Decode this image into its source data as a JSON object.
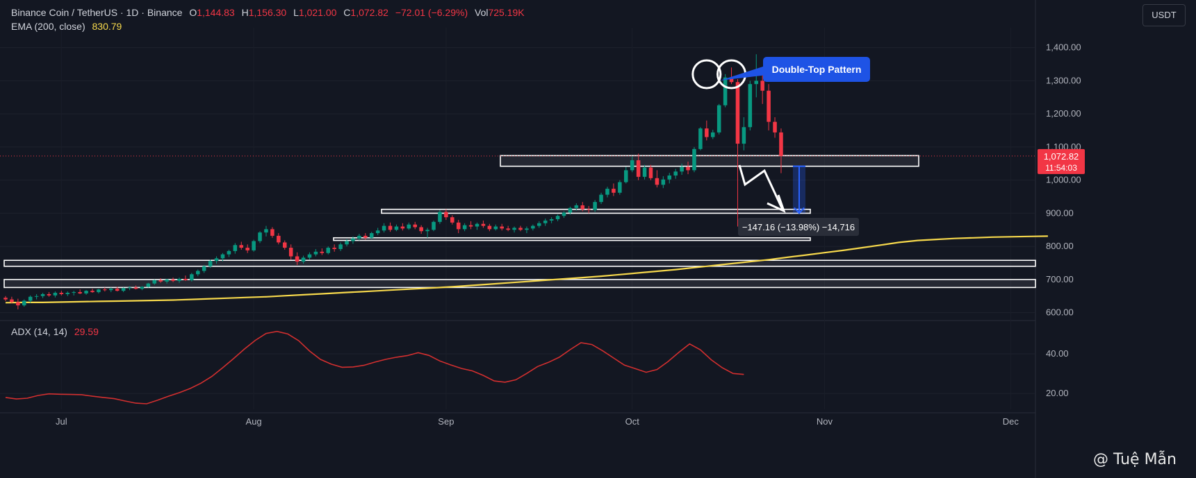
{
  "header": {
    "symbol": "Binance Coin / TetherUS · 1D · Binance",
    "o_label": "O",
    "o_value": "1,144.83",
    "h_label": "H",
    "h_value": "1,156.30",
    "l_label": "L",
    "l_value": "1,021.00",
    "c_label": "C",
    "c_value": "1,072.82",
    "change": "−72.01 (−6.29%)",
    "vol_label": "Vol",
    "vol_value": "725.19K"
  },
  "ema": {
    "label": "EMA (200, close)",
    "value": "830.79"
  },
  "adx": {
    "label": "ADX (14, 14)",
    "value": "29.59"
  },
  "currency_button": "USDT",
  "price_tag": {
    "price": "1,072.82",
    "countdown": "11:54:03"
  },
  "annotation": {
    "pattern_label": "Double-Top Pattern",
    "measure_label": "−147.16 (−13.98%) −14,716"
  },
  "watermark": "@ Tuệ Mẫn",
  "colors": {
    "background": "#131722",
    "up": "#089981",
    "down": "#f23645",
    "ema": "#f7d94c",
    "adx": "#d32f2f",
    "callout": "#1e53e5"
  },
  "chart_data": [
    {
      "type": "candlestick",
      "title": "Binance Coin / TetherUS · 1D · Binance",
      "x_ticks": [
        "Jul",
        "Aug",
        "Sep",
        "Oct",
        "Nov",
        "Dec"
      ],
      "y_ticks": [
        "600.00",
        "700.00",
        "800.00",
        "900.00",
        "1,000.00",
        "1,100.00",
        "1,200.00",
        "1,300.00",
        "1,400.00"
      ],
      "ylim": [
        570,
        1460
      ],
      "start_date": "2025-06-22",
      "x_end_date": "2025-12-05",
      "last_price": 1072.82,
      "ohlc": [
        [
          645,
          650,
          635,
          640
        ],
        [
          640,
          648,
          628,
          632
        ],
        [
          632,
          642,
          610,
          622
        ],
        [
          622,
          640,
          618,
          636
        ],
        [
          636,
          652,
          630,
          648
        ],
        [
          648,
          656,
          640,
          650
        ],
        [
          650,
          660,
          644,
          656
        ],
        [
          656,
          662,
          648,
          652
        ],
        [
          652,
          664,
          646,
          660
        ],
        [
          660,
          666,
          652,
          656
        ],
        [
          656,
          664,
          650,
          660
        ],
        [
          660,
          666,
          652,
          662
        ],
        [
          662,
          670,
          656,
          658
        ],
        [
          658,
          668,
          654,
          666
        ],
        [
          666,
          672,
          660,
          662
        ],
        [
          662,
          672,
          658,
          670
        ],
        [
          670,
          676,
          664,
          668
        ],
        [
          668,
          676,
          662,
          672
        ],
        [
          672,
          678,
          664,
          666
        ],
        [
          666,
          676,
          662,
          674
        ],
        [
          674,
          680,
          668,
          676
        ],
        [
          676,
          682,
          670,
          672
        ],
        [
          672,
          680,
          668,
          678
        ],
        [
          678,
          690,
          676,
          688
        ],
        [
          688,
          700,
          684,
          698
        ],
        [
          698,
          704,
          690,
          694
        ],
        [
          694,
          702,
          688,
          700
        ],
        [
          700,
          706,
          692,
          696
        ],
        [
          696,
          706,
          690,
          702
        ],
        [
          702,
          712,
          696,
          698
        ],
        [
          698,
          720,
          694,
          716
        ],
        [
          716,
          730,
          710,
          726
        ],
        [
          726,
          744,
          720,
          740
        ],
        [
          740,
          760,
          735,
          756
        ],
        [
          756,
          770,
          748,
          764
        ],
        [
          764,
          780,
          755,
          776
        ],
        [
          776,
          790,
          768,
          786
        ],
        [
          786,
          810,
          778,
          804
        ],
        [
          804,
          814,
          790,
          796
        ],
        [
          796,
          806,
          780,
          788
        ],
        [
          788,
          820,
          784,
          816
        ],
        [
          816,
          846,
          810,
          842
        ],
        [
          842,
          862,
          830,
          852
        ],
        [
          852,
          858,
          826,
          832
        ],
        [
          832,
          840,
          806,
          812
        ],
        [
          812,
          818,
          790,
          796
        ],
        [
          796,
          806,
          760,
          770
        ],
        [
          770,
          782,
          744,
          754
        ],
        [
          754,
          772,
          748,
          766
        ],
        [
          766,
          782,
          760,
          776
        ],
        [
          776,
          792,
          770,
          784
        ],
        [
          784,
          794,
          774,
          780
        ],
        [
          780,
          800,
          776,
          796
        ],
        [
          796,
          806,
          784,
          792
        ],
        [
          792,
          812,
          786,
          806
        ],
        [
          806,
          822,
          800,
          816
        ],
        [
          816,
          830,
          808,
          824
        ],
        [
          824,
          838,
          818,
          832
        ],
        [
          832,
          840,
          820,
          826
        ],
        [
          826,
          844,
          822,
          840
        ],
        [
          840,
          856,
          834,
          848
        ],
        [
          848,
          870,
          842,
          862
        ],
        [
          862,
          872,
          844,
          850
        ],
        [
          850,
          866,
          846,
          860
        ],
        [
          860,
          870,
          848,
          854
        ],
        [
          854,
          872,
          850,
          866
        ],
        [
          866,
          874,
          852,
          858
        ],
        [
          858,
          864,
          838,
          846
        ],
        [
          846,
          856,
          826,
          850
        ],
        [
          850,
          878,
          846,
          874
        ],
        [
          874,
          910,
          868,
          904
        ],
        [
          904,
          912,
          880,
          888
        ],
        [
          888,
          894,
          866,
          872
        ],
        [
          872,
          880,
          840,
          852
        ],
        [
          852,
          870,
          846,
          864
        ],
        [
          864,
          876,
          852,
          860
        ],
        [
          860,
          872,
          850,
          868
        ],
        [
          868,
          878,
          856,
          862
        ],
        [
          862,
          868,
          846,
          852
        ],
        [
          852,
          866,
          848,
          860
        ],
        [
          860,
          868,
          848,
          854
        ],
        [
          854,
          862,
          846,
          850
        ],
        [
          850,
          860,
          842,
          856
        ],
        [
          856,
          862,
          846,
          850
        ],
        [
          850,
          860,
          840,
          854
        ],
        [
          854,
          866,
          848,
          862
        ],
        [
          862,
          876,
          856,
          870
        ],
        [
          870,
          884,
          862,
          878
        ],
        [
          878,
          888,
          870,
          882
        ],
        [
          882,
          896,
          876,
          892
        ],
        [
          892,
          906,
          886,
          902
        ],
        [
          902,
          920,
          896,
          916
        ],
        [
          916,
          930,
          908,
          924
        ],
        [
          924,
          934,
          906,
          912
        ],
        [
          912,
          922,
          900,
          910
        ],
        [
          910,
          940,
          904,
          934
        ],
        [
          934,
          962,
          928,
          956
        ],
        [
          956,
          980,
          948,
          974
        ],
        [
          974,
          990,
          952,
          962
        ],
        [
          962,
          1000,
          956,
          994
        ],
        [
          994,
          1040,
          990,
          1030
        ],
        [
          1030,
          1072,
          1024,
          1060
        ],
        [
          1060,
          1080,
          1000,
          1010
        ],
        [
          1010,
          1046,
          1002,
          1038
        ],
        [
          1038,
          1046,
          1000,
          1006
        ],
        [
          1006,
          1030,
          978,
          986
        ],
        [
          986,
          1012,
          976,
          1002
        ],
        [
          1002,
          1022,
          990,
          1014
        ],
        [
          1014,
          1034,
          1004,
          1026
        ],
        [
          1026,
          1050,
          1016,
          1040
        ],
        [
          1040,
          1056,
          1018,
          1030
        ],
        [
          1030,
          1100,
          1024,
          1094
        ],
        [
          1094,
          1160,
          1090,
          1156
        ],
        [
          1156,
          1180,
          1120,
          1130
        ],
        [
          1130,
          1152,
          1124,
          1144
        ],
        [
          1144,
          1230,
          1138,
          1226
        ],
        [
          1226,
          1320,
          1220,
          1310
        ],
        [
          1310,
          1340,
          1290,
          1296
        ],
        [
          1296,
          1305,
          860,
          1110
        ],
        [
          1110,
          1190,
          1090,
          1160
        ],
        [
          1160,
          1300,
          1150,
          1290
        ],
        [
          1290,
          1380,
          1250,
          1300
        ],
        [
          1300,
          1318,
          1230,
          1270
        ],
        [
          1270,
          1290,
          1150,
          1176
        ],
        [
          1176,
          1190,
          1128,
          1144
        ],
        [
          1144,
          1156,
          1021,
          1073
        ]
      ],
      "series": [
        {
          "name": "EMA (200, close)",
          "values": [
            630,
            631,
            631,
            632,
            633,
            634,
            635,
            636,
            637,
            638,
            640,
            642,
            644,
            646,
            648,
            651,
            654,
            657,
            660,
            663,
            666,
            669,
            672,
            675,
            678,
            682,
            686,
            690,
            694,
            698,
            702,
            706,
            710,
            715,
            720,
            725,
            730,
            736,
            742,
            748,
            754,
            760,
            767,
            774,
            781,
            788,
            796,
            804,
            812,
            818,
            821,
            824,
            826,
            828,
            829,
            830,
            831
          ],
          "x_step": 3
        }
      ],
      "annotations": {
        "zones": [
          [
            1042,
            1074
          ],
          [
            900,
            912
          ],
          [
            818,
            826
          ],
          [
            740,
            758
          ],
          [
            676,
            700
          ]
        ],
        "measure": {
          "from": 1042,
          "to": 900
        }
      }
    },
    {
      "type": "line",
      "title": "ADX (14, 14)",
      "y_ticks": [
        "20.00",
        "40.00"
      ],
      "ylim": [
        12,
        54
      ],
      "series": [
        {
          "name": "ADX (14, 14)",
          "values": [
            18.0,
            17.2,
            17.6,
            19.0,
            19.8,
            19.6,
            19.5,
            19.4,
            18.6,
            18.0,
            17.4,
            16.2,
            15.1,
            14.8,
            16.6,
            18.6,
            20.4,
            22.5,
            25.2,
            28.6,
            33.0,
            37.6,
            42.4,
            46.8,
            50.3,
            51.3,
            50.0,
            46.6,
            41.4,
            37.2,
            34.8,
            33.2,
            33.4,
            34.2,
            35.8,
            37.2,
            38.3,
            39.1,
            40.6,
            39.2,
            36.4,
            34.4,
            32.6,
            31.4,
            29.1,
            26.3,
            25.7,
            26.9,
            30.1,
            33.6,
            35.7,
            38.3,
            42.1,
            45.6,
            44.7,
            41.5,
            37.9,
            34.3,
            32.5,
            30.7,
            32.1,
            36.0,
            40.7,
            45.0,
            42.0,
            37.0,
            33.0,
            30.1,
            29.6
          ]
        }
      ]
    }
  ]
}
